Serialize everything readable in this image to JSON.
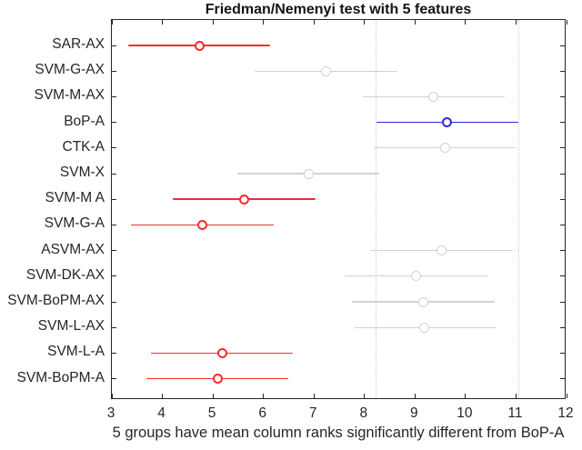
{
  "chart_data": {
    "type": "interval",
    "title": "Friedman/Nemenyi test with 5 features",
    "xlabel": "5 groups have mean column ranks significantly different from BoP-A",
    "xlim": [
      3,
      12
    ],
    "xticks": [
      3,
      4,
      5,
      6,
      7,
      8,
      9,
      10,
      11,
      12
    ],
    "grid": "off",
    "reference_group": "BoP-A",
    "reference_lines": [
      8.23,
      11.05
    ],
    "groups": [
      {
        "name": "SAR-AX",
        "mean": 4.73,
        "lo": 3.32,
        "hi": 6.14,
        "status": "significant"
      },
      {
        "name": "SVM-G-AX",
        "mean": 7.24,
        "lo": 5.83,
        "hi": 8.65,
        "status": "not_significant"
      },
      {
        "name": "SVM-M-AX",
        "mean": 9.37,
        "lo": 7.96,
        "hi": 10.78,
        "status": "not_significant"
      },
      {
        "name": "BoP-A",
        "mean": 9.64,
        "lo": 8.23,
        "hi": 11.05,
        "status": "reference"
      },
      {
        "name": "CTK-A",
        "mean": 9.59,
        "lo": 8.18,
        "hi": 11.0,
        "status": "not_significant"
      },
      {
        "name": "SVM-X",
        "mean": 6.89,
        "lo": 5.48,
        "hi": 8.3,
        "status": "not_significant"
      },
      {
        "name": "SVM-M A",
        "mean": 5.62,
        "lo": 4.21,
        "hi": 7.03,
        "status": "significant"
      },
      {
        "name": "SVM-G-A",
        "mean": 4.79,
        "lo": 3.38,
        "hi": 6.2,
        "status": "significant"
      },
      {
        "name": "ASVM-AX",
        "mean": 9.52,
        "lo": 8.11,
        "hi": 10.93,
        "status": "not_significant"
      },
      {
        "name": "SVM-DK-AX",
        "mean": 9.02,
        "lo": 7.61,
        "hi": 10.43,
        "status": "not_significant"
      },
      {
        "name": "SVM-BoPM-AX",
        "mean": 9.16,
        "lo": 7.75,
        "hi": 10.57,
        "status": "not_significant"
      },
      {
        "name": "SVM-L-AX",
        "mean": 9.19,
        "lo": 7.78,
        "hi": 10.6,
        "status": "not_significant"
      },
      {
        "name": "SVM-L-A",
        "mean": 5.18,
        "lo": 3.77,
        "hi": 6.59,
        "status": "significant"
      },
      {
        "name": "SVM-BoPM-A",
        "mean": 5.09,
        "lo": 3.68,
        "hi": 6.5,
        "status": "significant"
      }
    ],
    "colors": {
      "significant": "#f52c2c",
      "reference": "#2a2ae0",
      "not_significant": "#d2d2d2",
      "axis": "#262626",
      "reference_line": "#cbcbcb"
    }
  }
}
